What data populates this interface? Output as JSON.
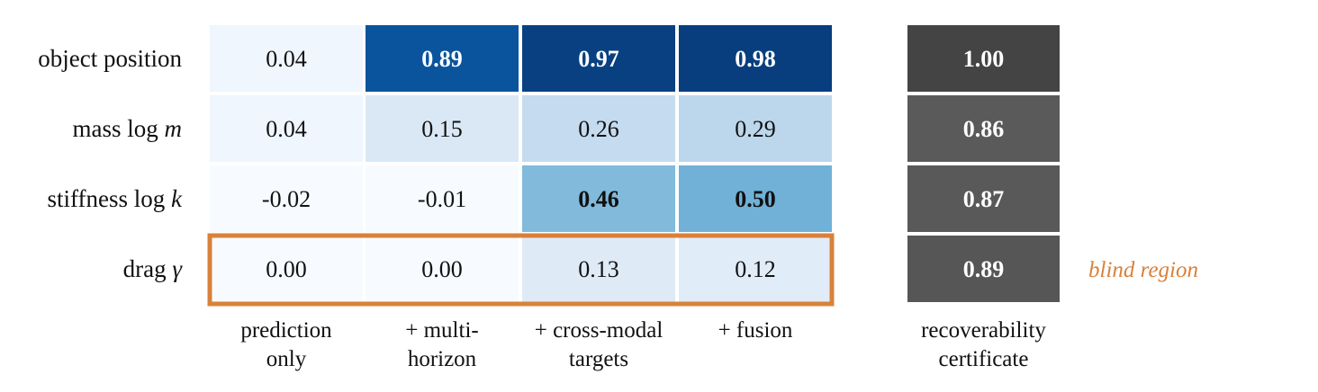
{
  "chart_data": {
    "type": "heatmap",
    "rows": [
      {
        "label_text": "object position",
        "label_symbol": ""
      },
      {
        "label_text": "mass log",
        "label_symbol": "m"
      },
      {
        "label_text": "stiffness log",
        "label_symbol": "k"
      },
      {
        "label_text": "drag",
        "label_symbol": "γ"
      }
    ],
    "columns": [
      {
        "lines": [
          "prediction",
          "only"
        ]
      },
      {
        "lines": [
          "+ multi-",
          "horizon"
        ]
      },
      {
        "lines": [
          "+ cross-modal",
          "targets"
        ]
      },
      {
        "lines": [
          "+ fusion"
        ]
      }
    ],
    "values": [
      [
        "0.04",
        "0.89",
        "0.97",
        "0.98"
      ],
      [
        "0.04",
        "0.15",
        "0.26",
        "0.29"
      ],
      [
        "-0.02",
        "-0.01",
        "0.46",
        "0.50"
      ],
      [
        "0.00",
        "0.00",
        "0.13",
        "0.12"
      ]
    ],
    "bold": [
      [
        false,
        true,
        true,
        true
      ],
      [
        false,
        false,
        false,
        false
      ],
      [
        false,
        false,
        true,
        true
      ],
      [
        false,
        false,
        false,
        false
      ]
    ],
    "certificate": {
      "column_lines": [
        "recoverability",
        "certificate"
      ],
      "values": [
        "1.00",
        "0.86",
        "0.87",
        "0.89"
      ]
    },
    "highlight": {
      "row_index": 3,
      "note": "blind region",
      "color": "#d9813a"
    },
    "colormap": "Blues"
  }
}
